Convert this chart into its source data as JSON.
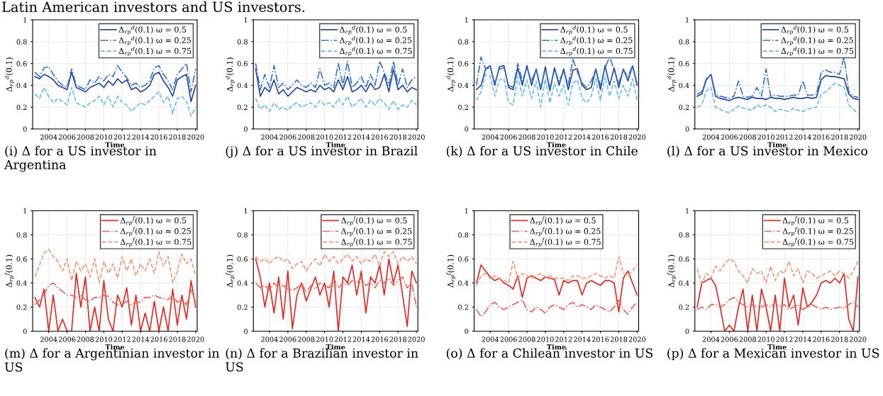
{
  "chart_data": [
    {
      "type": "line",
      "annotations": [
        "Latin American investors and US investors.",
        "(i) Δ for a US investor in Argentina"
      ],
      "xlabel": "Time",
      "ylabel": "Δ$_{r}$$_{p}$$^{d}$(0.1)",
      "xlim": [
        "2002-04",
        "2020-03"
      ],
      "ylim": [
        0,
        1
      ],
      "yticks": [
        0,
        0.2,
        0.4,
        0.6,
        0.8,
        1
      ],
      "xticks": [
        {
          "value": "2004",
          "label": "2004"
        },
        {
          "value": "2006",
          "label": "2006"
        },
        {
          "value": "2008",
          "label": "2008"
        },
        {
          "value": "2010",
          "label": "2010"
        },
        {
          "value": "2012",
          "label": "2012"
        },
        {
          "value": "2014",
          "label": "2014"
        },
        {
          "value": "2016",
          "label": "2016"
        },
        {
          "value": "2018",
          "label": "2018"
        },
        {
          "value": "2020",
          "label": "2020"
        }
      ],
      "grid": true,
      "legend": "top right",
      "x": [
        "2002-07",
        "2003-01",
        "2003-07",
        "2004-01",
        "2004-07",
        "2005-01",
        "2005-07",
        "2006-01",
        "2006-07",
        "2007-01",
        "2007-07",
        "2008-01",
        "2008-07",
        "2009-01",
        "2009-07",
        "2010-01",
        "2010-07",
        "2011-01",
        "2011-07",
        "2012-01",
        "2012-07",
        "2013-01",
        "2013-07",
        "2014-01",
        "2014-07",
        "2015-01",
        "2015-07",
        "2016-01",
        "2016-07",
        "2017-01",
        "2017-07",
        "2018-01",
        "2018-07",
        "2019-01",
        "2019-07",
        "2020-01"
      ],
      "series": [
        {
          "name": "Δ$_{r}$$_{p}$$^{d}$(0.1) ω = 0.5",
          "color": "#2347a6",
          "line_style": "solid",
          "values": [
            0.48,
            0.46,
            0.5,
            0.48,
            0.45,
            0.4,
            0.38,
            0.36,
            0.52,
            0.38,
            0.36,
            0.34,
            0.38,
            0.4,
            0.42,
            0.38,
            0.44,
            0.4,
            0.46,
            0.42,
            0.45,
            0.36,
            0.38,
            0.34,
            0.36,
            0.4,
            0.5,
            0.52,
            0.44,
            0.38,
            0.3,
            0.45,
            0.48,
            0.5,
            0.25,
            0.4
          ]
        },
        {
          "name": "Δ$_{r}$$_{p}$$^{d}$(0.1) ω = 0.25",
          "color": "#2f74d0",
          "line_style": "dotted",
          "values": [
            0.52,
            0.48,
            0.56,
            0.57,
            0.5,
            0.44,
            0.4,
            0.38,
            0.55,
            0.4,
            0.38,
            0.36,
            0.45,
            0.42,
            0.48,
            0.44,
            0.5,
            0.48,
            0.58,
            0.52,
            0.47,
            0.4,
            0.42,
            0.38,
            0.4,
            0.44,
            0.56,
            0.58,
            0.5,
            0.44,
            0.36,
            0.5,
            0.55,
            0.6,
            0.34,
            0.55
          ]
        },
        {
          "name": "Δ$_{r}$$_{p}$$^{d}$(0.1) ω = 0.75",
          "color": "#62bdf0",
          "line_style": "dashed",
          "values": [
            0.32,
            0.28,
            0.38,
            0.3,
            0.24,
            0.28,
            0.25,
            0.22,
            0.38,
            0.24,
            0.22,
            0.2,
            0.24,
            0.26,
            0.3,
            0.22,
            0.3,
            0.2,
            0.3,
            0.24,
            0.22,
            0.16,
            0.2,
            0.24,
            0.22,
            0.26,
            0.3,
            0.34,
            0.24,
            0.3,
            0.14,
            0.28,
            0.3,
            0.25,
            0.12,
            0.2
          ]
        }
      ]
    },
    {
      "type": "line",
      "annotations": [
        "(j) Δ for a US investor in Brazil"
      ],
      "xlabel": "Time",
      "ylabel": "Δ$_{r}$$_{p}$$^{d}$(0.1)",
      "xlim": [
        "2002-04",
        "2020-03"
      ],
      "ylim": [
        0,
        1
      ],
      "yticks": [
        0,
        0.2,
        0.4,
        0.6,
        0.8,
        1
      ],
      "xticks": [
        {
          "value": "2004",
          "label": "2004"
        },
        {
          "value": "2006",
          "label": "2006"
        },
        {
          "value": "2008",
          "label": "2008"
        },
        {
          "value": "2010",
          "label": "2010"
        },
        {
          "value": "2012",
          "label": "2012"
        },
        {
          "value": "2014",
          "label": "2014"
        },
        {
          "value": "2016",
          "label": "2016"
        },
        {
          "value": "2018",
          "label": "2018"
        },
        {
          "value": "2020",
          "label": "2020"
        }
      ],
      "grid": true,
      "legend": "top right",
      "x": [
        "2002-07",
        "2003-01",
        "2003-07",
        "2004-01",
        "2004-07",
        "2005-01",
        "2005-07",
        "2006-01",
        "2006-07",
        "2007-01",
        "2007-07",
        "2008-01",
        "2008-07",
        "2009-01",
        "2009-07",
        "2010-01",
        "2010-07",
        "2011-01",
        "2011-07",
        "2012-01",
        "2012-07",
        "2013-01",
        "2013-07",
        "2014-01",
        "2014-07",
        "2015-01",
        "2015-07",
        "2016-01",
        "2016-07",
        "2017-01",
        "2017-07",
        "2018-01",
        "2018-07",
        "2019-01",
        "2019-07",
        "2020-01"
      ],
      "series": [
        {
          "name": "Δ$_{r}$$_{p}$$^{d}$(0.1) ω = 0.5",
          "color": "#2347a6",
          "line_style": "solid",
          "values": [
            0.55,
            0.3,
            0.38,
            0.34,
            0.45,
            0.32,
            0.36,
            0.3,
            0.34,
            0.38,
            0.36,
            0.34,
            0.36,
            0.34,
            0.4,
            0.36,
            0.38,
            0.34,
            0.45,
            0.36,
            0.48,
            0.34,
            0.36,
            0.4,
            0.34,
            0.42,
            0.36,
            0.38,
            0.5,
            0.34,
            0.55,
            0.36,
            0.4,
            0.34,
            0.38,
            0.36
          ]
        },
        {
          "name": "Δ$_{r}$$_{p}$$^{d}$(0.1) ω = 0.25",
          "color": "#2f74d0",
          "line_style": "dotted",
          "values": [
            0.6,
            0.36,
            0.5,
            0.38,
            0.58,
            0.38,
            0.42,
            0.36,
            0.4,
            0.45,
            0.4,
            0.38,
            0.42,
            0.38,
            0.55,
            0.4,
            0.42,
            0.38,
            0.6,
            0.4,
            0.62,
            0.38,
            0.42,
            0.48,
            0.38,
            0.5,
            0.4,
            0.62,
            0.52,
            0.4,
            0.62,
            0.4,
            0.55,
            0.38,
            0.45,
            0.48
          ]
        },
        {
          "name": "Δ$_{r}$$_{p}$$^{d}$(0.1) ω = 0.75",
          "color": "#62bdf0",
          "line_style": "dashed",
          "values": [
            0.28,
            0.18,
            0.22,
            0.16,
            0.24,
            0.18,
            0.2,
            0.17,
            0.22,
            0.24,
            0.2,
            0.22,
            0.24,
            0.2,
            0.26,
            0.22,
            0.24,
            0.2,
            0.28,
            0.22,
            0.3,
            0.2,
            0.24,
            0.28,
            0.2,
            0.26,
            0.22,
            0.28,
            0.24,
            0.18,
            0.26,
            0.18,
            0.22,
            0.2,
            0.26,
            0.22
          ]
        }
      ]
    },
    {
      "type": "line",
      "annotations": [
        "(k) Δ for a US investor in Chile"
      ],
      "xlabel": "Time",
      "ylabel": "Δ$_{r}$$_{p}$$^{d}$(0.1)",
      "xlim": [
        "2002-04",
        "2020-03"
      ],
      "ylim": [
        0,
        1
      ],
      "yticks": [
        0,
        0.2,
        0.4,
        0.6,
        0.8,
        1
      ],
      "xticks": [
        {
          "value": "2004",
          "label": "2004"
        },
        {
          "value": "2006",
          "label": "2006"
        },
        {
          "value": "2008",
          "label": "2008"
        },
        {
          "value": "2010",
          "label": "2010"
        },
        {
          "value": "2012",
          "label": "2012"
        },
        {
          "value": "2014",
          "label": "2014"
        },
        {
          "value": "2016",
          "label": "2016"
        },
        {
          "value": "2018",
          "label": "2018"
        },
        {
          "value": "2020",
          "label": "2020"
        }
      ],
      "grid": true,
      "legend": "top right",
      "x": [
        "2002-07",
        "2003-01",
        "2003-07",
        "2004-01",
        "2004-07",
        "2005-01",
        "2005-07",
        "2006-01",
        "2006-07",
        "2007-01",
        "2007-07",
        "2008-01",
        "2008-07",
        "2009-01",
        "2009-07",
        "2010-01",
        "2010-07",
        "2011-01",
        "2011-07",
        "2012-01",
        "2012-07",
        "2013-01",
        "2013-07",
        "2014-01",
        "2014-07",
        "2015-01",
        "2015-07",
        "2016-01",
        "2016-07",
        "2017-01",
        "2017-07",
        "2018-01",
        "2018-07",
        "2019-01",
        "2019-07",
        "2020-01"
      ],
      "series": [
        {
          "name": "Δ$_{r}$$_{p}$$^{d}$(0.1) ω = 0.5",
          "color": "#2347a6",
          "line_style": "solid",
          "values": [
            0.36,
            0.4,
            0.55,
            0.58,
            0.4,
            0.57,
            0.58,
            0.38,
            0.36,
            0.56,
            0.4,
            0.58,
            0.4,
            0.55,
            0.36,
            0.57,
            0.35,
            0.56,
            0.4,
            0.55,
            0.36,
            0.54,
            0.55,
            0.4,
            0.36,
            0.38,
            0.55,
            0.36,
            0.58,
            0.4,
            0.56,
            0.38,
            0.55,
            0.44,
            0.58,
            0.4
          ]
        },
        {
          "name": "Δ$_{r}$$_{p}$$^{d}$(0.1) ω = 0.25",
          "color": "#2f74d0",
          "line_style": "dotted",
          "values": [
            0.4,
            0.66,
            0.55,
            0.56,
            0.42,
            0.55,
            0.56,
            0.4,
            0.38,
            0.6,
            0.44,
            0.56,
            0.44,
            0.54,
            0.38,
            0.55,
            0.38,
            0.54,
            0.44,
            0.53,
            0.4,
            0.64,
            0.52,
            0.42,
            0.38,
            0.44,
            0.54,
            0.4,
            0.56,
            0.66,
            0.54,
            0.42,
            0.54,
            0.48,
            0.58,
            0.42
          ]
        },
        {
          "name": "Δ$_{r}$$_{p}$$^{d}$(0.1) ω = 0.75",
          "color": "#62bdf0",
          "line_style": "dashed",
          "values": [
            0.26,
            0.34,
            0.5,
            0.48,
            0.3,
            0.45,
            0.46,
            0.24,
            0.22,
            0.48,
            0.3,
            0.45,
            0.28,
            0.44,
            0.2,
            0.46,
            0.24,
            0.42,
            0.3,
            0.4,
            0.22,
            0.42,
            0.45,
            0.28,
            0.24,
            0.3,
            0.46,
            0.26,
            0.48,
            0.3,
            0.44,
            0.28,
            0.4,
            0.3,
            0.46,
            0.26
          ]
        }
      ]
    },
    {
      "type": "line",
      "annotations": [
        "(l) Δ for a US investor in Mexico"
      ],
      "xlabel": "Time",
      "ylabel": "Δ$_{r}$$_{p}$$^{d}$(0.1)",
      "xlim": [
        "2002-04",
        "2020-03"
      ],
      "ylim": [
        0,
        1
      ],
      "yticks": [
        0,
        0.2,
        0.4,
        0.6,
        0.8,
        1
      ],
      "xticks": [
        {
          "value": "2004",
          "label": "2004"
        },
        {
          "value": "2006",
          "label": "2006"
        },
        {
          "value": "2008",
          "label": "2008"
        },
        {
          "value": "2010",
          "label": "2010"
        },
        {
          "value": "2012",
          "label": "2012"
        },
        {
          "value": "2014",
          "label": "2014"
        },
        {
          "value": "2016",
          "label": "2016"
        },
        {
          "value": "2018",
          "label": "2018"
        },
        {
          "value": "2020",
          "label": "2020"
        }
      ],
      "grid": true,
      "legend": "top right",
      "x": [
        "2002-07",
        "2003-01",
        "2003-07",
        "2004-01",
        "2004-07",
        "2005-01",
        "2005-07",
        "2006-01",
        "2006-07",
        "2007-01",
        "2007-07",
        "2008-01",
        "2008-07",
        "2009-01",
        "2009-07",
        "2010-01",
        "2010-07",
        "2011-01",
        "2011-07",
        "2012-01",
        "2012-07",
        "2013-01",
        "2013-07",
        "2014-01",
        "2014-07",
        "2015-01",
        "2015-07",
        "2016-01",
        "2016-07",
        "2017-01",
        "2017-07",
        "2018-01",
        "2018-07",
        "2019-01",
        "2019-07",
        "2020-01"
      ],
      "series": [
        {
          "name": "Δ$_{r}$$_{p}$$^{d}$(0.1) ω = 0.5",
          "color": "#2347a6",
          "line_style": "solid",
          "values": [
            0.3,
            0.32,
            0.45,
            0.5,
            0.3,
            0.28,
            0.27,
            0.26,
            0.28,
            0.29,
            0.28,
            0.27,
            0.29,
            0.28,
            0.28,
            0.27,
            0.29,
            0.28,
            0.28,
            0.27,
            0.28,
            0.29,
            0.28,
            0.28,
            0.29,
            0.28,
            0.29,
            0.45,
            0.49,
            0.48,
            0.48,
            0.47,
            0.46,
            0.32,
            0.28,
            0.27
          ]
        },
        {
          "name": "Δ$_{r}$$_{p}$$^{d}$(0.1) ω = 0.25",
          "color": "#2f74d0",
          "line_style": "dotted",
          "values": [
            0.32,
            0.34,
            0.46,
            0.5,
            0.32,
            0.3,
            0.29,
            0.28,
            0.3,
            0.44,
            0.3,
            0.29,
            0.3,
            0.38,
            0.3,
            0.55,
            0.3,
            0.31,
            0.3,
            0.3,
            0.3,
            0.31,
            0.31,
            0.44,
            0.31,
            0.31,
            0.32,
            0.52,
            0.54,
            0.52,
            0.52,
            0.5,
            0.66,
            0.34,
            0.3,
            0.29
          ]
        },
        {
          "name": "Δ$_{r}$$_{p}$$^{d}$(0.1) ω = 0.75",
          "color": "#62bdf0",
          "line_style": "dashed",
          "values": [
            0.2,
            0.22,
            0.35,
            0.38,
            0.2,
            0.18,
            0.16,
            0.15,
            0.18,
            0.21,
            0.19,
            0.18,
            0.17,
            0.22,
            0.2,
            0.22,
            0.2,
            0.16,
            0.18,
            0.17,
            0.16,
            0.19,
            0.17,
            0.16,
            0.18,
            0.19,
            0.2,
            0.32,
            0.34,
            0.38,
            0.42,
            0.4,
            0.38,
            0.22,
            0.18,
            0.14
          ]
        }
      ]
    },
    {
      "type": "line",
      "annotations": [
        "(m) Δ for a Argentinian investor in US"
      ],
      "xlabel": "Time",
      "ylabel": "Δ$_{r}$$_{p}$$^{f}$(0.1)",
      "xlim": [
        "2002-04",
        "2020-03"
      ],
      "ylim": [
        0,
        1
      ],
      "yticks": [
        0,
        0.2,
        0.4,
        0.6,
        0.8,
        1
      ],
      "xticks": [
        {
          "value": "2004",
          "label": "2004"
        },
        {
          "value": "2006",
          "label": "2006"
        },
        {
          "value": "2008",
          "label": "2008"
        },
        {
          "value": "2010",
          "label": "2010"
        },
        {
          "value": "2012",
          "label": "2012"
        },
        {
          "value": "2014",
          "label": "2014"
        },
        {
          "value": "2016",
          "label": "2016"
        },
        {
          "value": "2018",
          "label": "2018"
        },
        {
          "value": "2020",
          "label": "2020"
        }
      ],
      "grid": true,
      "legend": "top right",
      "x": [
        "2002-07",
        "2003-01",
        "2003-07",
        "2004-01",
        "2004-07",
        "2005-01",
        "2005-07",
        "2006-01",
        "2006-07",
        "2007-01",
        "2007-07",
        "2008-01",
        "2008-07",
        "2009-01",
        "2009-07",
        "2010-01",
        "2010-07",
        "2011-01",
        "2011-07",
        "2012-01",
        "2012-07",
        "2013-01",
        "2013-07",
        "2014-01",
        "2014-07",
        "2015-01",
        "2015-07",
        "2016-01",
        "2016-07",
        "2017-01",
        "2017-07",
        "2018-01",
        "2018-07",
        "2019-01",
        "2019-07",
        "2020-01"
      ],
      "series": [
        {
          "name": "Δ$_{r}$$_{p}$$^{f}$(0.1) ω = 0.5",
          "color": "#e8271f",
          "line_style": "solid",
          "values": [
            0.28,
            0.2,
            0.35,
            0.0,
            0.3,
            0.0,
            0.1,
            0.0,
            0.0,
            0.48,
            0.2,
            0.45,
            0.0,
            0.2,
            0.0,
            0.42,
            0.1,
            0.0,
            0.3,
            0.2,
            0.36,
            0.05,
            0.3,
            0.0,
            0.15,
            0.0,
            0.25,
            0.0,
            0.2,
            0.0,
            0.35,
            0.05,
            0.3,
            0.1,
            0.42,
            0.2
          ]
        },
        {
          "name": "Δ$_{r}$$_{p}$$^{f}$(0.1) ω = 0.25",
          "color": "#ef6259",
          "line_style": "dotted",
          "values": [
            0.22,
            0.26,
            0.3,
            0.38,
            0.4,
            0.36,
            0.33,
            0.3,
            0.3,
            0.28,
            0.3,
            0.26,
            0.25,
            0.28,
            0.28,
            0.3,
            0.29,
            0.24,
            0.22,
            0.22,
            0.25,
            0.22,
            0.24,
            0.24,
            0.28,
            0.28,
            0.3,
            0.28,
            0.27,
            0.26,
            0.3,
            0.24,
            0.26,
            0.22,
            0.34,
            0.24
          ]
        },
        {
          "name": "Δ$_{r}$$_{p}$$^{f}$(0.1) ω = 0.75",
          "color": "#f4966f",
          "line_style": "dashed",
          "values": [
            0.45,
            0.55,
            0.65,
            0.68,
            0.62,
            0.58,
            0.5,
            0.6,
            0.42,
            0.58,
            0.5,
            0.56,
            0.45,
            0.6,
            0.4,
            0.58,
            0.48,
            0.56,
            0.44,
            0.62,
            0.5,
            0.6,
            0.46,
            0.56,
            0.5,
            0.6,
            0.48,
            0.66,
            0.54,
            0.62,
            0.4,
            0.5,
            0.64,
            0.56,
            0.6,
            0.46
          ]
        }
      ]
    },
    {
      "type": "line",
      "annotations": [
        "(n) Δ for a Brazilian investor in US"
      ],
      "xlabel": "Time",
      "ylabel": "Δ$_{r}$$_{p}$$^{f}$(0.1)",
      "xlim": [
        "2002-04",
        "2020-03"
      ],
      "ylim": [
        0,
        1
      ],
      "yticks": [
        0,
        0.2,
        0.4,
        0.6,
        0.8,
        1
      ],
      "xticks": [
        {
          "value": "2004",
          "label": "2004"
        },
        {
          "value": "2006",
          "label": "2006"
        },
        {
          "value": "2008",
          "label": "2008"
        },
        {
          "value": "2010",
          "label": "2010"
        },
        {
          "value": "2012",
          "label": "2012"
        },
        {
          "value": "2014",
          "label": "2014"
        },
        {
          "value": "2016",
          "label": "2016"
        },
        {
          "value": "2018",
          "label": "2018"
        },
        {
          "value": "2020",
          "label": "2020"
        }
      ],
      "grid": true,
      "legend": "top right",
      "x": [
        "2002-07",
        "2003-01",
        "2003-07",
        "2004-01",
        "2004-07",
        "2005-01",
        "2005-07",
        "2006-01",
        "2006-07",
        "2007-01",
        "2007-07",
        "2008-01",
        "2008-07",
        "2009-01",
        "2009-07",
        "2010-01",
        "2010-07",
        "2011-01",
        "2011-07",
        "2012-01",
        "2012-07",
        "2013-01",
        "2013-07",
        "2014-01",
        "2014-07",
        "2015-01",
        "2015-07",
        "2016-01",
        "2016-07",
        "2017-01",
        "2017-07",
        "2018-01",
        "2018-07",
        "2019-01",
        "2019-07",
        "2020-01"
      ],
      "series": [
        {
          "name": "Δ$_{r}$$_{p}$$^{f}$(0.1) ω = 0.5",
          "color": "#e8271f",
          "line_style": "solid",
          "values": [
            0.6,
            0.45,
            0.2,
            0.4,
            0.15,
            0.45,
            0.1,
            0.5,
            0.02,
            0.3,
            0.4,
            0.25,
            0.35,
            0.45,
            0.3,
            0.4,
            0.2,
            0.5,
            0.0,
            0.45,
            0.4,
            0.55,
            0.3,
            0.5,
            0.15,
            0.45,
            0.4,
            0.55,
            0.3,
            0.6,
            0.4,
            0.55,
            0.3,
            0.04,
            0.5,
            0.4
          ]
        },
        {
          "name": "Δ$_{r}$$_{p}$$^{f}$(0.1) ω = 0.25",
          "color": "#ef6259",
          "line_style": "dotted",
          "values": [
            0.4,
            0.36,
            0.38,
            0.34,
            0.4,
            0.36,
            0.38,
            0.35,
            0.34,
            0.36,
            0.4,
            0.32,
            0.38,
            0.35,
            0.4,
            0.38,
            0.36,
            0.44,
            0.36,
            0.4,
            0.38,
            0.42,
            0.4,
            0.44,
            0.38,
            0.4,
            0.36,
            0.42,
            0.4,
            0.44,
            0.38,
            0.42,
            0.45,
            0.36,
            0.4,
            0.2
          ]
        },
        {
          "name": "Δ$_{r}$$_{p}$$^{f}$(0.1) ω = 0.75",
          "color": "#f4966f",
          "line_style": "dashed",
          "values": [
            0.62,
            0.58,
            0.6,
            0.56,
            0.6,
            0.62,
            0.58,
            0.6,
            0.52,
            0.56,
            0.58,
            0.5,
            0.56,
            0.6,
            0.54,
            0.64,
            0.58,
            0.62,
            0.56,
            0.6,
            0.64,
            0.58,
            0.62,
            0.56,
            0.6,
            0.58,
            0.64,
            0.54,
            0.66,
            0.62,
            0.66,
            0.56,
            0.62,
            0.58,
            0.62,
            0.56
          ]
        }
      ]
    },
    {
      "type": "line",
      "annotations": [
        "(o) Δ for a Chilean investor in US"
      ],
      "xlabel": "Time",
      "ylabel": "Δ$_{r}$$_{p}$$^{f}$(0.1)",
      "xlim": [
        "2002-04",
        "2020-03"
      ],
      "ylim": [
        0,
        1
      ],
      "yticks": [
        0,
        0.2,
        0.4,
        0.6,
        0.8,
        1
      ],
      "xticks": [
        {
          "value": "2004",
          "label": "2004"
        },
        {
          "value": "2006",
          "label": "2006"
        },
        {
          "value": "2008",
          "label": "2008"
        },
        {
          "value": "2010",
          "label": "2010"
        },
        {
          "value": "2012",
          "label": "2012"
        },
        {
          "value": "2014",
          "label": "2014"
        },
        {
          "value": "2016",
          "label": "2016"
        },
        {
          "value": "2018",
          "label": "2018"
        },
        {
          "value": "2020",
          "label": "2020"
        }
      ],
      "grid": true,
      "legend": "top",
      "x": [
        "2002-07",
        "2003-01",
        "2003-07",
        "2004-01",
        "2004-07",
        "2005-01",
        "2005-07",
        "2006-01",
        "2006-07",
        "2007-01",
        "2007-07",
        "2008-01",
        "2008-07",
        "2009-01",
        "2009-07",
        "2010-01",
        "2010-07",
        "2011-01",
        "2011-07",
        "2012-01",
        "2012-07",
        "2013-01",
        "2013-07",
        "2014-01",
        "2014-07",
        "2015-01",
        "2015-07",
        "2016-01",
        "2016-07",
        "2017-01",
        "2017-07",
        "2018-01",
        "2018-07",
        "2019-01",
        "2019-07",
        "2020-01"
      ],
      "series": [
        {
          "name": "Δ$_{r}$$_{p}$$^{f}$(0.1) ω = 0.5",
          "color": "#e8271f",
          "line_style": "solid",
          "values": [
            0.4,
            0.55,
            0.5,
            0.45,
            0.42,
            0.44,
            0.4,
            0.38,
            0.35,
            0.46,
            0.28,
            0.44,
            0.46,
            0.44,
            0.42,
            0.45,
            0.44,
            0.43,
            0.3,
            0.42,
            0.4,
            0.42,
            0.42,
            0.3,
            0.4,
            0.42,
            0.4,
            0.38,
            0.42,
            0.42,
            0.4,
            0.16,
            0.44,
            0.5,
            0.4,
            0.3
          ]
        },
        {
          "name": "Δ$_{r}$$_{p}$$^{f}$(0.1) ω = 0.25",
          "color": "#ef6259",
          "line_style": "dotted",
          "values": [
            0.18,
            0.12,
            0.16,
            0.22,
            0.24,
            0.2,
            0.18,
            0.2,
            0.22,
            0.24,
            0.26,
            0.18,
            0.16,
            0.2,
            0.18,
            0.15,
            0.2,
            0.22,
            0.2,
            0.18,
            0.22,
            0.24,
            0.2,
            0.22,
            0.2,
            0.18,
            0.22,
            0.2,
            0.18,
            0.16,
            0.2,
            0.26,
            0.18,
            0.14,
            0.2,
            0.24
          ]
        },
        {
          "name": "Δ$_{r}$$_{p}$$^{f}$(0.1) ω = 0.75",
          "color": "#f4966f",
          "line_style": "dashed",
          "values": [
            0.38,
            0.46,
            0.48,
            0.44,
            0.46,
            0.44,
            0.42,
            0.4,
            0.58,
            0.44,
            0.48,
            0.46,
            0.44,
            0.46,
            0.48,
            0.45,
            0.46,
            0.44,
            0.44,
            0.44,
            0.42,
            0.46,
            0.46,
            0.44,
            0.44,
            0.46,
            0.48,
            0.46,
            0.44,
            0.46,
            0.44,
            0.62,
            0.48,
            0.46,
            0.5,
            0.55
          ]
        }
      ]
    },
    {
      "type": "line",
      "annotations": [
        "(p) Δ for a Mexican investor in US"
      ],
      "xlabel": "Time",
      "ylabel": "Δ$_{r}$$_{p}$$^{f}$(0.1)",
      "xlim": [
        "2002-04",
        "2020-03"
      ],
      "ylim": [
        0,
        1
      ],
      "yticks": [
        0,
        0.2,
        0.4,
        0.6,
        0.8,
        1
      ],
      "xticks": [
        {
          "value": "2004",
          "label": "2004"
        },
        {
          "value": "2006",
          "label": "2006"
        },
        {
          "value": "2008",
          "label": "2008"
        },
        {
          "value": "2010",
          "label": "2010"
        },
        {
          "value": "2012",
          "label": "2012"
        },
        {
          "value": "2014",
          "label": "2014"
        },
        {
          "value": "2016",
          "label": "2016"
        },
        {
          "value": "2018",
          "label": "2018"
        },
        {
          "value": "2020",
          "label": "2020"
        }
      ],
      "grid": true,
      "legend": "top right",
      "x": [
        "2002-07",
        "2003-01",
        "2003-07",
        "2004-01",
        "2004-07",
        "2005-01",
        "2005-07",
        "2006-01",
        "2006-07",
        "2007-01",
        "2007-07",
        "2008-01",
        "2008-07",
        "2009-01",
        "2009-07",
        "2010-01",
        "2010-07",
        "2011-01",
        "2011-07",
        "2012-01",
        "2012-07",
        "2013-01",
        "2013-07",
        "2014-01",
        "2014-07",
        "2015-01",
        "2015-07",
        "2016-01",
        "2016-07",
        "2017-01",
        "2017-07",
        "2018-01",
        "2018-07",
        "2019-01",
        "2019-07",
        "2020-01"
      ],
      "series": [
        {
          "name": "Δ$_{r}$$_{p}$$^{f}$(0.1) ω = 0.5",
          "color": "#e8271f",
          "line_style": "solid",
          "values": [
            0.2,
            0.4,
            0.42,
            0.44,
            0.38,
            0.2,
            0.0,
            0.05,
            0.0,
            0.2,
            0.35,
            0.0,
            0.3,
            0.0,
            0.35,
            0.2,
            0.0,
            0.3,
            0.0,
            0.44,
            0.2,
            0.3,
            0.05,
            0.36,
            0.2,
            0.24,
            0.3,
            0.4,
            0.42,
            0.4,
            0.44,
            0.4,
            0.48,
            0.1,
            0.0,
            0.45
          ]
        },
        {
          "name": "Δ$_{r}$$_{p}$$^{f}$(0.1) ω = 0.25",
          "color": "#ef6259",
          "line_style": "dotted",
          "values": [
            0.18,
            0.2,
            0.18,
            0.22,
            0.22,
            0.2,
            0.22,
            0.26,
            0.28,
            0.24,
            0.22,
            0.2,
            0.22,
            0.2,
            0.2,
            0.22,
            0.2,
            0.24,
            0.2,
            0.22,
            0.18,
            0.2,
            0.22,
            0.18,
            0.2,
            0.22,
            0.2,
            0.18,
            0.2,
            0.18,
            0.19,
            0.2,
            0.19,
            0.22,
            0.24,
            0.2
          ]
        },
        {
          "name": "Δ$_{r}$$_{p}$$^{f}$(0.1) ω = 0.75",
          "color": "#f4966f",
          "line_style": "dashed",
          "values": [
            0.52,
            0.4,
            0.48,
            0.44,
            0.54,
            0.5,
            0.56,
            0.6,
            0.58,
            0.5,
            0.46,
            0.4,
            0.52,
            0.48,
            0.5,
            0.4,
            0.54,
            0.42,
            0.5,
            0.48,
            0.58,
            0.46,
            0.52,
            0.4,
            0.5,
            0.48,
            0.44,
            0.46,
            0.48,
            0.5,
            0.46,
            0.5,
            0.48,
            0.44,
            0.5,
            0.58
          ]
        }
      ]
    }
  ]
}
